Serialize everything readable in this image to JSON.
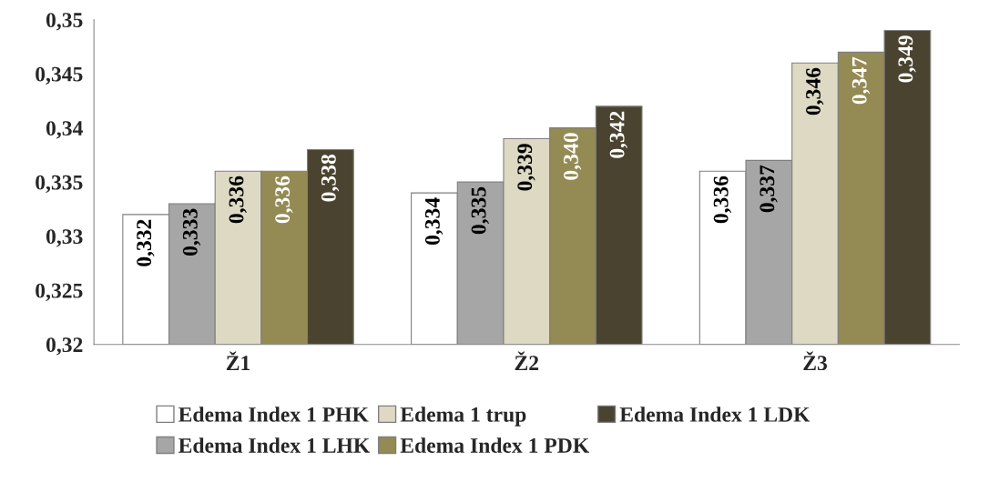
{
  "chart_data": {
    "type": "bar",
    "categories": [
      "Ž1",
      "Ž2",
      "Ž3"
    ],
    "series": [
      {
        "name": "Edema Index 1 PHK",
        "color": "#ffffff",
        "values": [
          0.332,
          0.334,
          0.336
        ],
        "value_labels": [
          "0,332",
          "0,334",
          "0,336"
        ]
      },
      {
        "name": "Edema Index 1 LHK",
        "color": "#a6a6a6",
        "values": [
          0.333,
          0.335,
          0.337
        ],
        "value_labels": [
          "0,333",
          "0,335",
          "0,337"
        ]
      },
      {
        "name": "Edema 1 trup",
        "color": "#ddd9c3",
        "values": [
          0.336,
          0.339,
          0.346
        ],
        "value_labels": [
          "0,336",
          "0,339",
          "0,346"
        ]
      },
      {
        "name": "Edema Index 1 PDK",
        "color": "#948a54",
        "values": [
          0.336,
          0.34,
          0.347
        ],
        "value_labels": [
          "0,336",
          "0,340",
          "0,347"
        ]
      },
      {
        "name": "Edema Index 1 LDK",
        "color": "#4a4330",
        "values": [
          0.338,
          0.342,
          0.349
        ],
        "value_labels": [
          "0,338",
          "0,342",
          "0,349"
        ]
      }
    ],
    "ylim": [
      0.32,
      0.35
    ],
    "yticks": [
      {
        "value": 0.32,
        "label": "0,32"
      },
      {
        "value": 0.325,
        "label": "0,325"
      },
      {
        "value": 0.33,
        "label": "0,33"
      },
      {
        "value": 0.335,
        "label": "0,335"
      },
      {
        "value": 0.34,
        "label": "0,34"
      },
      {
        "value": 0.345,
        "label": "0,345"
      },
      {
        "value": 0.35,
        "label": "0,35"
      }
    ],
    "grid": false,
    "legend": "bottom"
  }
}
